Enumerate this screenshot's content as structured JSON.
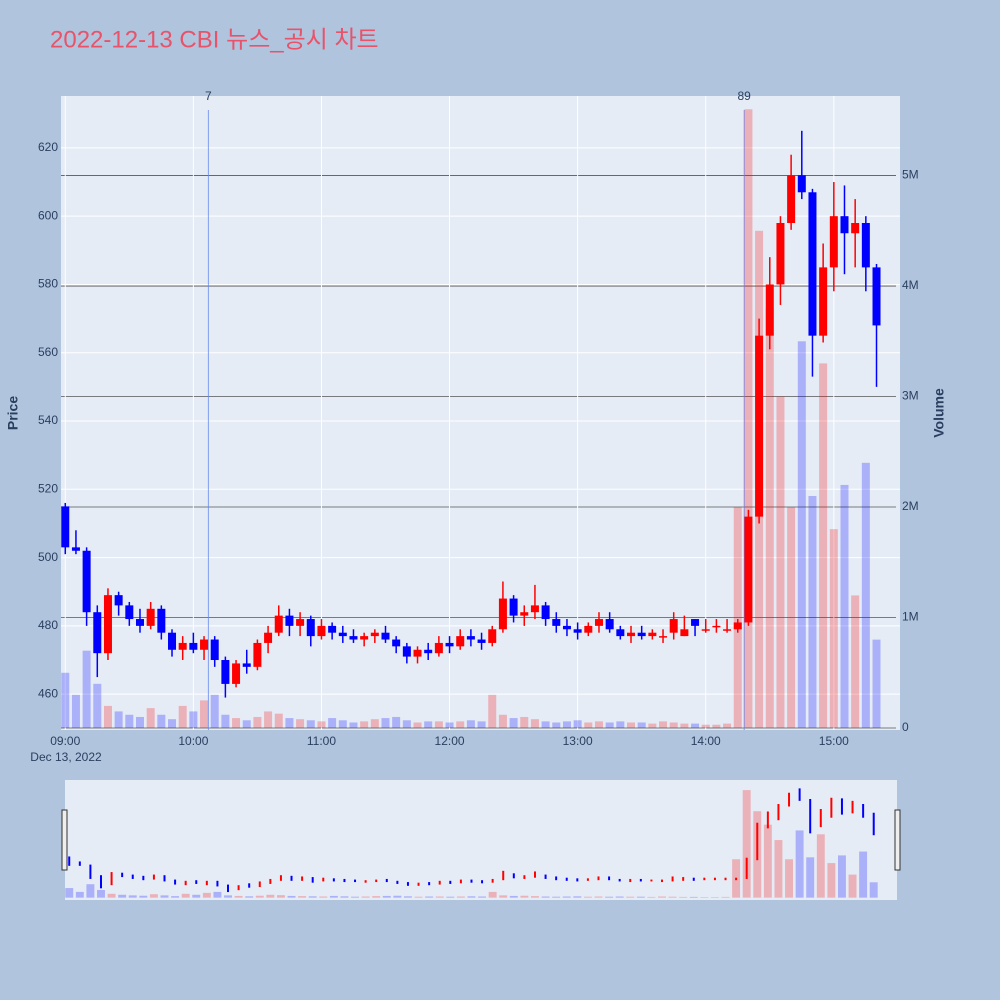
{
  "chart_data": {
    "type": "candlestick",
    "title": "2022-12-13 CBI 뉴스_공시 차트",
    "title_color": "#e8536a",
    "y_label": "Price",
    "y2_label": "Volume",
    "x_date_label": "Dec 13, 2022",
    "x": [
      "09:00",
      "09:05",
      "09:10",
      "09:15",
      "09:20",
      "09:25",
      "09:30",
      "09:35",
      "09:40",
      "09:45",
      "09:50",
      "09:55",
      "10:00",
      "10:05",
      "10:10",
      "10:15",
      "10:20",
      "10:25",
      "10:30",
      "10:35",
      "10:40",
      "10:45",
      "10:50",
      "10:55",
      "11:00",
      "11:05",
      "11:10",
      "11:15",
      "11:20",
      "11:25",
      "11:30",
      "11:35",
      "11:40",
      "11:45",
      "11:50",
      "11:55",
      "12:00",
      "12:05",
      "12:10",
      "12:15",
      "12:20",
      "12:25",
      "12:30",
      "12:35",
      "12:40",
      "12:45",
      "12:50",
      "12:55",
      "13:00",
      "13:05",
      "13:10",
      "13:15",
      "13:20",
      "13:25",
      "13:30",
      "13:35",
      "13:40",
      "13:45",
      "13:50",
      "13:55",
      "14:00",
      "14:05",
      "14:10",
      "14:15",
      "14:20",
      "14:25",
      "14:30",
      "14:35",
      "14:40",
      "14:45",
      "14:50",
      "14:55",
      "15:00",
      "15:05",
      "15:10",
      "15:15",
      "15:20"
    ],
    "open": [
      515,
      503,
      502,
      484,
      472,
      489,
      486,
      482,
      480,
      485,
      478,
      473,
      475,
      473,
      476,
      470,
      463,
      469,
      468,
      475,
      478,
      483,
      480,
      482,
      477,
      480,
      478,
      477,
      476,
      477,
      478,
      476,
      474,
      471,
      473,
      472,
      475,
      474,
      477,
      476,
      475,
      479,
      488,
      483,
      484,
      486,
      482,
      480,
      479,
      478,
      480,
      482,
      479,
      477,
      478,
      477,
      477,
      478,
      477,
      482,
      479,
      480,
      479,
      479,
      481,
      512,
      565,
      580,
      598,
      612,
      607,
      565,
      585,
      600,
      595,
      598,
      585
    ],
    "high": [
      516,
      508,
      503,
      486,
      491,
      490,
      487,
      485,
      487,
      486,
      479,
      477,
      478,
      477,
      477,
      471,
      470,
      473,
      476,
      480,
      486,
      485,
      484,
      483,
      482,
      481,
      480,
      479,
      478,
      479,
      480,
      477,
      475,
      474,
      475,
      477,
      477,
      479,
      479,
      478,
      480,
      493,
      489,
      486,
      492,
      487,
      484,
      482,
      481,
      481,
      484,
      484,
      480,
      480,
      480,
      479,
      479,
      484,
      483,
      482,
      482,
      482,
      482,
      482,
      514,
      570,
      588,
      600,
      618,
      625,
      608,
      592,
      610,
      609,
      605,
      600,
      586
    ],
    "low": [
      501,
      501,
      480,
      465,
      470,
      483,
      480,
      478,
      479,
      476,
      471,
      470,
      472,
      470,
      468,
      459,
      462,
      466,
      467,
      472,
      477,
      477,
      477,
      474,
      476,
      476,
      475,
      475,
      474,
      475,
      475,
      472,
      469,
      469,
      470,
      471,
      472,
      473,
      474,
      473,
      474,
      478,
      481,
      480,
      482,
      480,
      478,
      477,
      476,
      477,
      478,
      478,
      476,
      475,
      476,
      476,
      475,
      476,
      477,
      477,
      478,
      478,
      478,
      478,
      480,
      510,
      561,
      574,
      596,
      605,
      553,
      563,
      578,
      583,
      585,
      578,
      550
    ],
    "close": [
      503,
      502,
      484,
      472,
      489,
      486,
      482,
      480,
      485,
      478,
      473,
      475,
      473,
      476,
      470,
      463,
      469,
      468,
      475,
      478,
      483,
      480,
      482,
      477,
      480,
      478,
      477,
      476,
      477,
      478,
      476,
      474,
      471,
      473,
      472,
      475,
      474,
      477,
      476,
      475,
      479,
      488,
      483,
      484,
      486,
      482,
      480,
      479,
      478,
      480,
      482,
      479,
      477,
      478,
      477,
      478,
      477,
      482,
      479,
      480,
      479,
      480,
      479,
      481,
      512,
      565,
      580,
      598,
      612,
      607,
      565,
      585,
      600,
      595,
      598,
      585,
      568
    ],
    "volume": [
      500000,
      300000,
      700000,
      400000,
      200000,
      150000,
      120000,
      100000,
      180000,
      120000,
      80000,
      200000,
      150000,
      250000,
      300000,
      120000,
      90000,
      70000,
      100000,
      150000,
      130000,
      90000,
      80000,
      70000,
      60000,
      90000,
      70000,
      50000,
      60000,
      80000,
      90000,
      100000,
      70000,
      50000,
      60000,
      60000,
      50000,
      60000,
      70000,
      60000,
      300000,
      120000,
      90000,
      100000,
      80000,
      60000,
      50000,
      60000,
      70000,
      50000,
      60000,
      50000,
      60000,
      50000,
      50000,
      40000,
      60000,
      50000,
      40000,
      40000,
      30000,
      30000,
      40000,
      2000000,
      5600000,
      4500000,
      3800000,
      3000000,
      2000000,
      3500000,
      2100000,
      3300000,
      1800000,
      2200000,
      1200000,
      2400000,
      800000
    ],
    "increasing_color": "#ff0000",
    "decreasing_color": "#0000ff",
    "xlim": [
      "08:58",
      "15:31"
    ],
    "xticks": [
      "09:00",
      "10:00",
      "11:00",
      "12:00",
      "13:00",
      "14:00",
      "15:00"
    ],
    "ylim": [
      449.5,
      635.2
    ],
    "yticks": [
      460,
      480,
      500,
      520,
      540,
      560,
      580,
      600,
      620
    ],
    "y2lim": [
      -18000,
      5720000
    ],
    "y2ticks": [
      {
        "value": 0,
        "label": "0"
      },
      {
        "value": 1000000,
        "label": "1M"
      },
      {
        "value": 2000000,
        "label": "2M"
      },
      {
        "value": 3000000,
        "label": "3M"
      },
      {
        "value": 4000000,
        "label": "4M"
      },
      {
        "value": 5000000,
        "label": "5M"
      }
    ],
    "annotations": [
      {
        "x": "10:07",
        "text": "7"
      },
      {
        "x": "14:18",
        "text": "89"
      }
    ],
    "grid": true,
    "rangeslider": true
  }
}
